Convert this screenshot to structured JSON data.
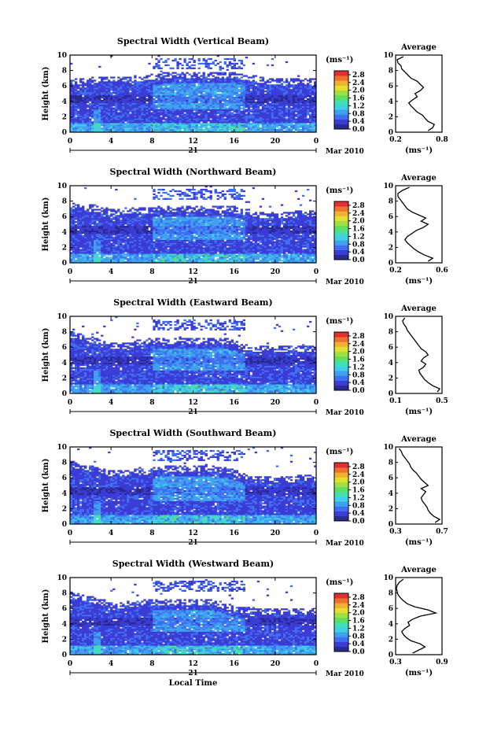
{
  "chart_data": [
    {
      "type": "heatmap",
      "title": "Spectral Width (Vertical Beam)",
      "ylabel": "Height (km)",
      "x_ticks": [
        "0",
        "4",
        "8",
        "12",
        "16",
        "20",
        "0"
      ],
      "y_ticks": [
        "0",
        "2",
        "4",
        "6",
        "8",
        "10"
      ],
      "xlim": [
        0,
        24
      ],
      "ylim": [
        0,
        10
      ],
      "date_day": "21",
      "date_month": "Mar 2010",
      "colorbar_unit": "(ms⁻¹)",
      "colorbar_ticks": [
        "0.0",
        "0.4",
        "0.8",
        "1.2",
        "1.6",
        "2.0",
        "2.4",
        "2.8"
      ],
      "colorbar_range": [
        0,
        3.0
      ],
      "cloud_top_km": [
        6.5,
        6.5,
        6.5,
        6.6,
        6.6,
        6.6,
        6.7,
        6.8,
        7.0,
        7.1,
        7.2,
        7.2,
        7.2,
        7.2,
        7.2,
        7.2,
        7.2,
        7.0,
        6.8,
        6.5,
        6.5,
        6.5,
        6.5,
        6.4,
        6.4
      ],
      "average_profile": {
        "title": "Average",
        "xlabel": "(ms⁻¹)",
        "x_ticks": [
          "0.2",
          "0.8"
        ],
        "xlim": [
          0.2,
          0.8
        ],
        "y_ticks": [
          "0",
          "2",
          "4",
          "6",
          "8",
          "10"
        ],
        "height_km": [
          0.2,
          0.6,
          1.0,
          1.4,
          1.8,
          2.2,
          2.6,
          3.0,
          3.4,
          3.8,
          4.2,
          4.6,
          5.0,
          5.4,
          5.8,
          6.2,
          6.6,
          7.0,
          7.4,
          7.8,
          8.2,
          8.6,
          9.0,
          9.4,
          9.8
        ],
        "width": [
          0.62,
          0.68,
          0.7,
          0.62,
          0.58,
          0.55,
          0.48,
          0.44,
          0.4,
          0.37,
          0.42,
          0.48,
          0.45,
          0.52,
          0.56,
          0.52,
          0.48,
          0.4,
          0.36,
          0.32,
          0.28,
          0.27,
          0.23,
          0.22,
          0.3
        ]
      }
    },
    {
      "type": "heatmap",
      "title": "Spectral Width (Northward Beam)",
      "ylabel": "Height (km)",
      "x_ticks": [
        "0",
        "4",
        "8",
        "12",
        "16",
        "20",
        "0"
      ],
      "y_ticks": [
        "0",
        "2",
        "4",
        "6",
        "8",
        "10"
      ],
      "xlim": [
        0,
        24
      ],
      "ylim": [
        0,
        10
      ],
      "date_day": "21",
      "date_month": "Mar 2010",
      "colorbar_unit": "(ms⁻¹)",
      "colorbar_ticks": [
        "0.0",
        "0.4",
        "0.8",
        "1.2",
        "1.6",
        "2.0",
        "2.4",
        "2.8"
      ],
      "colorbar_range": [
        0,
        3.0
      ],
      "cloud_top_km": [
        7.2,
        7.2,
        7.0,
        6.6,
        6.5,
        6.5,
        6.6,
        6.6,
        6.7,
        6.8,
        6.8,
        6.8,
        6.8,
        6.8,
        6.8,
        6.8,
        6.8,
        6.4,
        6.2,
        6.0,
        6.0,
        6.0,
        6.1,
        6.2,
        6.2
      ],
      "average_profile": {
        "title": "Average",
        "xlabel": "(ms⁻¹)",
        "x_ticks": [
          "0.2",
          "0.6"
        ],
        "xlim": [
          0.2,
          0.6
        ],
        "y_ticks": [
          "0",
          "2",
          "4",
          "6",
          "8",
          "10"
        ],
        "height_km": [
          0.2,
          0.6,
          1.0,
          1.4,
          1.8,
          2.2,
          2.6,
          3.0,
          3.4,
          3.8,
          4.2,
          4.6,
          5.0,
          5.4,
          5.8,
          6.2,
          6.6,
          7.0,
          7.4,
          7.8,
          8.2,
          8.6,
          9.0,
          9.4,
          9.8
        ],
        "width": [
          0.48,
          0.52,
          0.45,
          0.4,
          0.36,
          0.33,
          0.3,
          0.28,
          0.3,
          0.34,
          0.38,
          0.44,
          0.48,
          0.42,
          0.46,
          0.4,
          0.34,
          0.3,
          0.28,
          0.26,
          0.24,
          0.22,
          0.22,
          0.26,
          0.32
        ]
      }
    },
    {
      "type": "heatmap",
      "title": "Spectral Width (Eastward Beam)",
      "ylabel": "Height (km)",
      "x_ticks": [
        "0",
        "4",
        "8",
        "12",
        "16",
        "20",
        "0"
      ],
      "y_ticks": [
        "0",
        "2",
        "4",
        "6",
        "8",
        "10"
      ],
      "xlim": [
        0,
        24
      ],
      "ylim": [
        0,
        10
      ],
      "date_day": "21",
      "date_month": "Mar 2010",
      "colorbar_unit": "(ms⁻¹)",
      "colorbar_ticks": [
        "0.0",
        "0.4",
        "0.8",
        "1.2",
        "1.6",
        "2.0",
        "2.4",
        "2.8"
      ],
      "colorbar_range": [
        0,
        3.0
      ],
      "cloud_top_km": [
        7.4,
        7.2,
        6.8,
        6.5,
        6.0,
        6.0,
        6.2,
        6.4,
        6.6,
        6.6,
        6.6,
        6.6,
        6.6,
        6.6,
        6.6,
        6.6,
        6.4,
        5.8,
        5.6,
        5.6,
        5.6,
        5.6,
        5.6,
        5.6,
        5.6
      ],
      "average_profile": {
        "title": "Average",
        "xlabel": "(ms⁻¹)",
        "x_ticks": [
          "0.1",
          "0.5"
        ],
        "xlim": [
          0.1,
          0.5
        ],
        "y_ticks": [
          "0",
          "2",
          "4",
          "6",
          "8",
          "10"
        ],
        "height_km": [
          0.2,
          0.6,
          1.0,
          1.4,
          1.8,
          2.2,
          2.6,
          3.0,
          3.4,
          3.8,
          4.2,
          4.6,
          5.0,
          5.4,
          5.8,
          6.2,
          6.6,
          7.0,
          7.4,
          7.8,
          8.2,
          8.6,
          9.0,
          9.4,
          9.8
        ],
        "width": [
          0.46,
          0.48,
          0.42,
          0.38,
          0.35,
          0.33,
          0.31,
          0.3,
          0.34,
          0.36,
          0.32,
          0.34,
          0.38,
          0.36,
          0.32,
          0.3,
          0.28,
          0.26,
          0.24,
          0.22,
          0.2,
          0.19,
          0.17,
          0.16,
          0.18
        ]
      }
    },
    {
      "type": "heatmap",
      "title": "Spectral Width (Southward Beam)",
      "ylabel": "Height (km)",
      "x_ticks": [
        "0",
        "4",
        "8",
        "12",
        "16",
        "20",
        "0"
      ],
      "y_ticks": [
        "0",
        "2",
        "4",
        "6",
        "8",
        "10"
      ],
      "xlim": [
        0,
        24
      ],
      "ylim": [
        0,
        10
      ],
      "date_day": "21",
      "date_month": "Mar 2010",
      "colorbar_unit": "(ms⁻¹)",
      "colorbar_ticks": [
        "0.0",
        "0.4",
        "0.8",
        "1.2",
        "1.6",
        "2.0",
        "2.4",
        "2.8"
      ],
      "colorbar_range": [
        0,
        3.0
      ],
      "cloud_top_km": [
        7.6,
        7.4,
        7.0,
        6.6,
        6.4,
        6.4,
        6.5,
        6.6,
        6.8,
        7.0,
        7.0,
        7.0,
        7.0,
        7.0,
        7.0,
        6.8,
        6.6,
        6.0,
        5.6,
        5.6,
        5.6,
        5.6,
        5.7,
        5.8,
        5.8
      ],
      "average_profile": {
        "title": "Average",
        "xlabel": "(ms⁻¹)",
        "x_ticks": [
          "0.3",
          "0.7"
        ],
        "xlim": [
          0.3,
          0.7
        ],
        "y_ticks": [
          "0",
          "2",
          "4",
          "6",
          "8",
          "10"
        ],
        "height_km": [
          0.2,
          0.6,
          1.0,
          1.4,
          1.8,
          2.2,
          2.6,
          3.0,
          3.4,
          3.8,
          4.2,
          4.6,
          5.0,
          5.4,
          5.8,
          6.2,
          6.6,
          7.0,
          7.4,
          7.8,
          8.2,
          8.6,
          9.0,
          9.4,
          9.8
        ],
        "width": [
          0.64,
          0.68,
          0.63,
          0.6,
          0.58,
          0.57,
          0.55,
          0.53,
          0.52,
          0.54,
          0.56,
          0.52,
          0.58,
          0.55,
          0.52,
          0.5,
          0.48,
          0.45,
          0.43,
          0.42,
          0.4,
          0.38,
          0.36,
          0.35,
          0.33
        ]
      }
    },
    {
      "type": "heatmap",
      "title": "Spectral Width (Westward Beam)",
      "ylabel": "Height (km)",
      "xlabel": "Local Time",
      "x_ticks": [
        "0",
        "4",
        "8",
        "12",
        "16",
        "20",
        "0"
      ],
      "y_ticks": [
        "0",
        "2",
        "4",
        "6",
        "8",
        "10"
      ],
      "xlim": [
        0,
        24
      ],
      "ylim": [
        0,
        10
      ],
      "date_day": "21",
      "date_month": "Mar 2010",
      "colorbar_unit": "(ms⁻¹)",
      "colorbar_ticks": [
        "0.0",
        "0.4",
        "0.8",
        "1.2",
        "1.6",
        "2.0",
        "2.4",
        "2.8"
      ],
      "colorbar_range": [
        0,
        3.0
      ],
      "cloud_top_km": [
        7.6,
        7.4,
        7.0,
        6.6,
        6.4,
        6.2,
        6.4,
        6.5,
        6.6,
        6.6,
        6.6,
        6.6,
        6.6,
        6.6,
        6.5,
        6.2,
        5.8,
        5.6,
        5.5,
        5.5,
        5.5,
        5.5,
        5.5,
        5.5,
        5.5
      ],
      "average_profile": {
        "title": "Average",
        "xlabel": "(ms⁻¹)",
        "x_ticks": [
          "0.3",
          "0.9"
        ],
        "xlim": [
          0.3,
          0.9
        ],
        "y_ticks": [
          "0",
          "2",
          "4",
          "6",
          "8",
          "10"
        ],
        "height_km": [
          0.2,
          0.6,
          1.0,
          1.4,
          1.8,
          2.2,
          2.6,
          3.0,
          3.4,
          3.8,
          4.2,
          4.6,
          5.0,
          5.4,
          5.8,
          6.2,
          6.6,
          7.0,
          7.4,
          7.8,
          8.2,
          8.6,
          9.0,
          9.4,
          9.8
        ],
        "width": [
          0.52,
          0.6,
          0.68,
          0.62,
          0.5,
          0.44,
          0.4,
          0.38,
          0.42,
          0.48,
          0.46,
          0.52,
          0.62,
          0.82,
          0.72,
          0.55,
          0.45,
          0.4,
          0.36,
          0.33,
          0.32,
          0.31,
          0.32,
          0.35,
          0.4
        ]
      }
    }
  ],
  "colors": {
    "colormap": [
      "#2a2a8f",
      "#3b3bd6",
      "#3f6ff0",
      "#3fa0f0",
      "#3fd0e8",
      "#40e0b0",
      "#60e060",
      "#a0e040",
      "#e0e030",
      "#f0b030",
      "#f07030",
      "#e03030"
    ],
    "axis": "#000000"
  }
}
